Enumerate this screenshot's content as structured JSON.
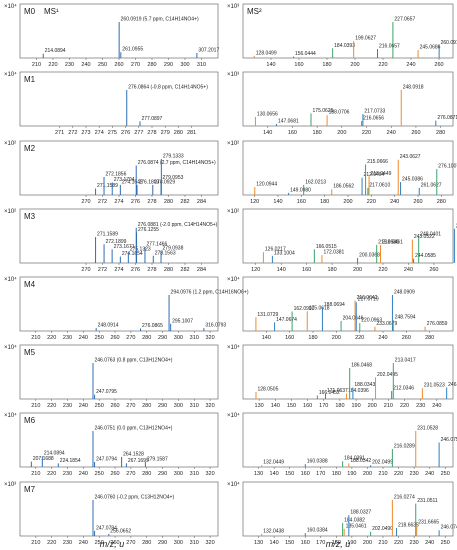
{
  "figure": {
    "left_xlabel": "m/z, u",
    "right_xlabel": "m/z, u"
  },
  "chart_data": [
    {
      "type": "bar",
      "panel": "M0",
      "title": "MS¹",
      "scale_label": "×10⁴",
      "xlim": [
        200,
        320
      ],
      "xticks": [
        210,
        220,
        230,
        240,
        250,
        260,
        270,
        280,
        290,
        300,
        310
      ],
      "peaks": [
        [
          214.0894,
          0.12,
          "214.0894"
        ],
        [
          260.0919,
          1.0,
          "260.0919 (5.7 ppm, C14H14NO4+)"
        ],
        [
          261.0955,
          0.16,
          "261.0955"
        ],
        [
          307.2017,
          0.14,
          "307.2017"
        ]
      ]
    },
    {
      "type": "bar",
      "panel": "M0",
      "title": "MS²",
      "scale_label": "×10³",
      "xlim": [
        120,
        270
      ],
      "xticks": [
        140,
        160,
        180,
        200,
        220,
        240,
        260
      ],
      "peaks": [
        [
          128.0499,
          0.06,
          "128.0499"
        ],
        [
          156.0444,
          0.04,
          "156.0444"
        ],
        [
          184.0393,
          0.27,
          "184.0393"
        ],
        [
          199.0627,
          0.47,
          "199.0627"
        ],
        [
          216.0657,
          0.25,
          "216.0657"
        ],
        [
          227.0657,
          1.0,
          "227.0657"
        ],
        [
          245.0686,
          0.22,
          "245.0686"
        ],
        [
          260.0919,
          0.35,
          "260.0919"
        ]
      ]
    },
    {
      "type": "bar",
      "panel": "M1",
      "scale_label": "×10⁴",
      "xlim": [
        268,
        283
      ],
      "xticks": [
        271,
        272,
        273,
        274,
        275,
        276,
        277,
        278,
        279,
        280,
        281
      ],
      "peaks": [
        [
          276.0864,
          1.0,
          "276.0864 (-0.8 ppm, C14H14NO5+)"
        ],
        [
          277.0897,
          0.13,
          "277.0897"
        ]
      ]
    },
    {
      "type": "bar",
      "panel": "M1",
      "scale_label": "×10³",
      "xlim": [
        120,
        290
      ],
      "xticks": [
        140,
        160,
        180,
        200,
        220,
        240,
        260,
        280
      ],
      "peaks": [
        [
          130.0656,
          0.25,
          "130.0656"
        ],
        [
          147.0681,
          0.06,
          "147.0681"
        ],
        [
          175.0625,
          0.35,
          "175.0625"
        ],
        [
          188.0706,
          0.3,
          "188.0706"
        ],
        [
          217.0733,
          0.33,
          "217.0733"
        ],
        [
          216.0656,
          0.14,
          "216.0656"
        ],
        [
          248.0918,
          1.0,
          "248.0918"
        ],
        [
          276.0871,
          0.15,
          "276.0871"
        ]
      ]
    },
    {
      "type": "bar",
      "panel": "M2",
      "scale_label": "×10²",
      "xlim": [
        262,
        286
      ],
      "xticks": [
        270,
        272,
        274,
        276,
        278,
        280,
        282,
        284
      ],
      "peaks": [
        [
          271.1589,
          0.18,
          "271.1589"
        ],
        [
          272.1856,
          0.5,
          "272.1856"
        ],
        [
          273.1794,
          0.35,
          "273.1794"
        ],
        [
          274.1642,
          0.28,
          "274.1642"
        ],
        [
          276.1803,
          0.28,
          "276.1803"
        ],
        [
          276.0874,
          0.82,
          "276.0874 (2.7 ppm, C14H14NO5+)"
        ],
        [
          278.0929,
          0.28,
          "278.0929"
        ],
        [
          279.0953,
          0.4,
          "279.0953"
        ],
        [
          279.1333,
          1.0,
          "279.1333"
        ]
      ]
    },
    {
      "type": "bar",
      "panel": "M2",
      "scale_label": "×10²",
      "xlim": [
        110,
        290
      ],
      "xticks": [
        120,
        140,
        160,
        180,
        200,
        220,
        240,
        260,
        280
      ],
      "peaks": [
        [
          120.0944,
          0.22,
          "120.0944"
        ],
        [
          149.098,
          0.06,
          "149.0980"
        ],
        [
          162.0213,
          0.28,
          "162.0213"
        ],
        [
          186.0562,
          0.16,
          "186.0562"
        ],
        [
          212.0494,
          0.48,
          "212.0494"
        ],
        [
          215.0666,
          0.85,
          "215.0666"
        ],
        [
          218.0449,
          0.52,
          "218.0449"
        ],
        [
          245.0386,
          0.36,
          "245.0386"
        ],
        [
          217.061,
          0.2,
          "217.0610"
        ],
        [
          243.0627,
          0.98,
          "243.0627"
        ],
        [
          261.0627,
          0.2,
          "261.0627"
        ],
        [
          276.1007,
          0.72,
          "276.1007"
        ]
      ]
    },
    {
      "type": "bar",
      "panel": "M3",
      "scale_label": "×10²",
      "xlim": [
        262,
        286
      ],
      "xticks": [
        270,
        272,
        274,
        276,
        278,
        280,
        282,
        284
      ],
      "peaks": [
        [
          271.1589,
          0.72,
          "271.1589"
        ],
        [
          272.1899,
          0.52,
          "272.1899"
        ],
        [
          273.1671,
          0.38,
          "273.1671"
        ],
        [
          274.1654,
          0.18,
          "274.1654"
        ],
        [
          275.1323,
          0.3,
          "275.1323"
        ],
        [
          276.0881,
          0.98,
          "276.0881 (-2.0 ppm, C14H14NO5+)"
        ],
        [
          276.1255,
          0.85,
          "276.1255"
        ],
        [
          277.1466,
          0.44,
          "277.1466"
        ],
        [
          279.0938,
          0.34,
          "279.0938"
        ],
        [
          278.1563,
          0.2,
          "278.1563"
        ]
      ]
    },
    {
      "type": "bar",
      "panel": "M3",
      "scale_label": "×10²",
      "xlim": [
        110,
        275
      ],
      "xticks": [
        120,
        140,
        160,
        180,
        200,
        220,
        240,
        260
      ],
      "peaks": [
        [
          126.0217,
          0.3,
          "126.0217"
        ],
        [
          133.1004,
          0.2,
          "133.1004"
        ],
        [
          166.0515,
          0.38,
          "166.0515"
        ],
        [
          172.0381,
          0.22,
          "172.0381"
        ],
        [
          200.0368,
          0.14,
          "200.0368"
        ],
        [
          215.058,
          0.5,
          "215.0580"
        ],
        [
          218.0461,
          0.5,
          "218.0461"
        ],
        [
          244.0585,
          0.12,
          "244.0585"
        ],
        [
          248.0401,
          0.72,
          "248.0401"
        ],
        [
          243.0522,
          0.65,
          "243.0522"
        ],
        [
          276.0863,
          0.95,
          "276.0863"
        ]
      ]
    },
    {
      "type": "bar",
      "panel": "M4",
      "scale_label": "×10⁴",
      "xlim": [
        200,
        325
      ],
      "xticks": [
        210,
        220,
        230,
        240,
        250,
        260,
        270,
        280,
        290,
        300,
        310,
        320
      ],
      "peaks": [
        [
          248.0914,
          0.08,
          "248.0914"
        ],
        [
          276.0865,
          0.07,
          "276.0865"
        ],
        [
          294.0976,
          1.0,
          "294.0976 (1.2 ppm, C14H16NO6+)"
        ],
        [
          295.1007,
          0.2,
          "295.1007"
        ],
        [
          316.0793,
          0.08,
          "316.0793"
        ]
      ]
    },
    {
      "type": "bar",
      "panel": "M4",
      "scale_label": "×10⁴",
      "xlim": [
        120,
        300
      ],
      "xticks": [
        140,
        160,
        180,
        200,
        220,
        240,
        260,
        280
      ],
      "peaks": [
        [
          131.0729,
          0.38,
          "131.0729"
        ],
        [
          147.0674,
          0.24,
          "147.0674"
        ],
        [
          162.0901,
          0.54,
          "162.0901"
        ],
        [
          175.0618,
          0.55,
          "175.0618"
        ],
        [
          188.0694,
          0.65,
          "188.0694"
        ],
        [
          204.0646,
          0.28,
          "204.0646"
        ],
        [
          216.0642,
          0.85,
          "216.0642"
        ],
        [
          217.0719,
          0.8,
          "217.0719"
        ],
        [
          220.0963,
          0.22,
          "220.0963"
        ],
        [
          233.0679,
          0.12,
          "233.0679"
        ],
        [
          248.0909,
          1.0,
          "248.0909"
        ],
        [
          248.7594,
          0.3,
          "248.7594"
        ],
        [
          276.0859,
          0.12,
          "276.0859"
        ]
      ]
    },
    {
      "type": "bar",
      "panel": "M5",
      "scale_label": "×10⁴",
      "xlim": [
        200,
        325
      ],
      "xticks": [
        210,
        220,
        230,
        240,
        250,
        260,
        270,
        280,
        290,
        300,
        310,
        320
      ],
      "peaks": [
        [
          246.0763,
          1.0,
          "246.0763 (0.8 ppm, C13H12NO4+)"
        ],
        [
          247.0795,
          0.12,
          "247.0795"
        ]
      ]
    },
    {
      "type": "bar",
      "panel": "M5",
      "scale_label": "×10⁴",
      "xlim": [
        120,
        250
      ],
      "xticks": [
        130,
        140,
        150,
        160,
        170,
        180,
        190,
        200,
        210,
        220,
        230,
        240
      ],
      "peaks": [
        [
          128.0505,
          0.2,
          "128.0505"
        ],
        [
          171.0637,
          0.15,
          "171.0637"
        ],
        [
          166.0452,
          0.1,
          "166.0452"
        ],
        [
          184.0396,
          0.15,
          "184.0396"
        ],
        [
          188.0343,
          0.32,
          "188.0343"
        ],
        [
          186.0468,
          0.86,
          "186.0468"
        ],
        [
          202.0495,
          0.6,
          "202.0495"
        ],
        [
          212.0346,
          0.22,
          "212.0346"
        ],
        [
          213.0417,
          1.0,
          "213.0417"
        ],
        [
          231.0523,
          0.3,
          "231.0523"
        ],
        [
          246.0766,
          0.32,
          "246.0766"
        ]
      ]
    },
    {
      "type": "bar",
      "panel": "M6",
      "scale_label": "×10⁴",
      "xlim": [
        200,
        325
      ],
      "xticks": [
        210,
        220,
        230,
        240,
        250,
        260,
        270,
        280,
        290,
        300,
        310,
        320
      ],
      "peaks": [
        [
          207.1688,
          0.15,
          "207.1688"
        ],
        [
          214.0894,
          0.3,
          "214.0894"
        ],
        [
          224.1854,
          0.1,
          "224.1854"
        ],
        [
          247.0794,
          0.14,
          "247.0794"
        ],
        [
          246.0751,
          1.0,
          "246.0751 (0.0 ppm, C13H12NO4+)"
        ],
        [
          264.1528,
          0.28,
          "264.1528"
        ],
        [
          267.1699,
          0.1,
          "267.1699"
        ],
        [
          279.1587,
          0.14,
          "279.1587"
        ]
      ]
    },
    {
      "type": "bar",
      "panel": "M6",
      "scale_label": "×10⁴",
      "xlim": [
        120,
        255
      ],
      "xticks": [
        130,
        140,
        150,
        160,
        170,
        180,
        190,
        200,
        210,
        220,
        230,
        240,
        250
      ],
      "peaks": [
        [
          132.0449,
          0.05,
          "132.0449"
        ],
        [
          160.0388,
          0.08,
          "160.0388"
        ],
        [
          184.0391,
          0.16,
          "184.0391"
        ],
        [
          188.0342,
          0.1,
          "188.0342"
        ],
        [
          202.0499,
          0.05,
          "202.0499"
        ],
        [
          216.0289,
          0.5,
          "216.0289"
        ],
        [
          231.0528,
          1.0,
          "231.0528"
        ],
        [
          246.0753,
          0.68,
          "246.0753"
        ]
      ]
    },
    {
      "type": "bar",
      "panel": "M7",
      "scale_label": "×10³",
      "xlim": [
        200,
        325
      ],
      "xticks": [
        210,
        220,
        230,
        240,
        250,
        260,
        270,
        280,
        290,
        300,
        310,
        320
      ],
      "peaks": [
        [
          246.076,
          1.0,
          "246.0760 (-0.2 ppm, C13H12NO4+)"
        ],
        [
          247.0794,
          0.14,
          "247.0794"
        ],
        [
          256.0652,
          0.06,
          "256.0652"
        ]
      ]
    },
    {
      "type": "bar",
      "panel": "M7",
      "scale_label": "×10⁴",
      "xlim": [
        120,
        255
      ],
      "xticks": [
        130,
        140,
        150,
        160,
        170,
        180,
        190,
        200,
        210,
        220,
        230,
        240,
        250
      ],
      "peaks": [
        [
          132.0438,
          0.06,
          "132.0438"
        ],
        [
          160.0384,
          0.08,
          "160.0384"
        ],
        [
          184.0382,
          0.36,
          "184.0382"
        ],
        [
          185.0461,
          0.2,
          "185.0461"
        ],
        [
          188.0327,
          0.58,
          "188.0327"
        ],
        [
          202.049,
          0.12,
          "202.0490"
        ],
        [
          216.0274,
          1.0,
          "216.0274"
        ],
        [
          218.6635,
          0.22,
          "218.6635"
        ],
        [
          231.0511,
          0.9,
          "231.0511"
        ],
        [
          231.6665,
          0.3,
          "231.6665"
        ],
        [
          246.0749,
          0.16,
          "246.0749"
        ]
      ]
    }
  ]
}
